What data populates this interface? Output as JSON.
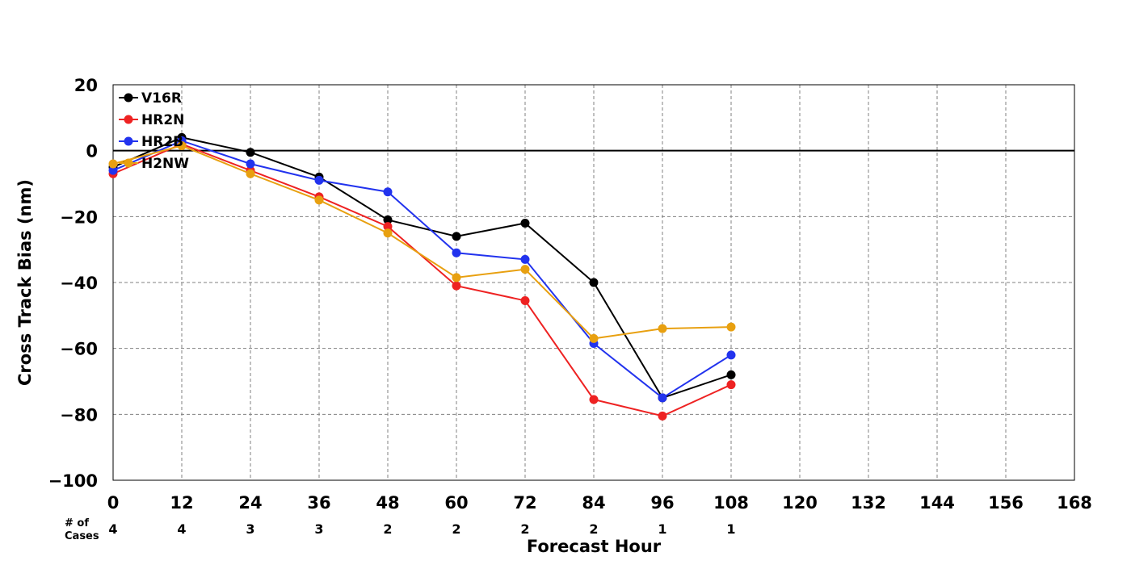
{
  "chart_data": {
    "type": "line",
    "title": "",
    "xlabel": "Forecast Hour",
    "ylabel": "Cross Track Bias (nm)",
    "xlim": [
      0,
      168
    ],
    "ylim": [
      -100,
      20
    ],
    "xticks": [
      0,
      12,
      24,
      36,
      48,
      60,
      72,
      84,
      96,
      108,
      120,
      132,
      144,
      156,
      168
    ],
    "yticks": [
      20,
      0,
      -20,
      -40,
      -60,
      -80,
      -100
    ],
    "ytick_labels": [
      "20",
      "0",
      "−20",
      "−40",
      "−60",
      "−80",
      "−100"
    ],
    "grid": true,
    "zero_line": true,
    "legend_position": "top-left",
    "x": [
      0,
      12,
      24,
      36,
      48,
      60,
      72,
      84,
      96,
      108
    ],
    "series": [
      {
        "name": "V16R",
        "color": "#000000",
        "values": [
          -5,
          4,
          -0.5,
          -8,
          -21,
          -26,
          -22,
          -40,
          -75,
          -68
        ]
      },
      {
        "name": "HR2N",
        "color": "#ee2222",
        "values": [
          -7,
          2,
          -6,
          -14,
          -23,
          -41,
          -45.5,
          -75.5,
          -80.5,
          -71
        ]
      },
      {
        "name": "HR2B",
        "color": "#2233ee",
        "values": [
          -6,
          3,
          -4,
          -9,
          -12.5,
          -31,
          -33,
          -58.5,
          -75,
          -62
        ]
      },
      {
        "name": "H2NW",
        "color": "#e8a010",
        "values": [
          -4,
          1.5,
          -7,
          -15,
          -25,
          -38.5,
          -36,
          -57,
          -54,
          -53.5
        ]
      }
    ],
    "cases": {
      "label_line1": "# of",
      "label_line2": "Cases",
      "x": [
        0,
        12,
        24,
        36,
        48,
        60,
        72,
        84,
        96,
        108
      ],
      "values": [
        "4",
        "4",
        "3",
        "3",
        "2",
        "2",
        "2",
        "2",
        "1",
        "1"
      ]
    }
  }
}
